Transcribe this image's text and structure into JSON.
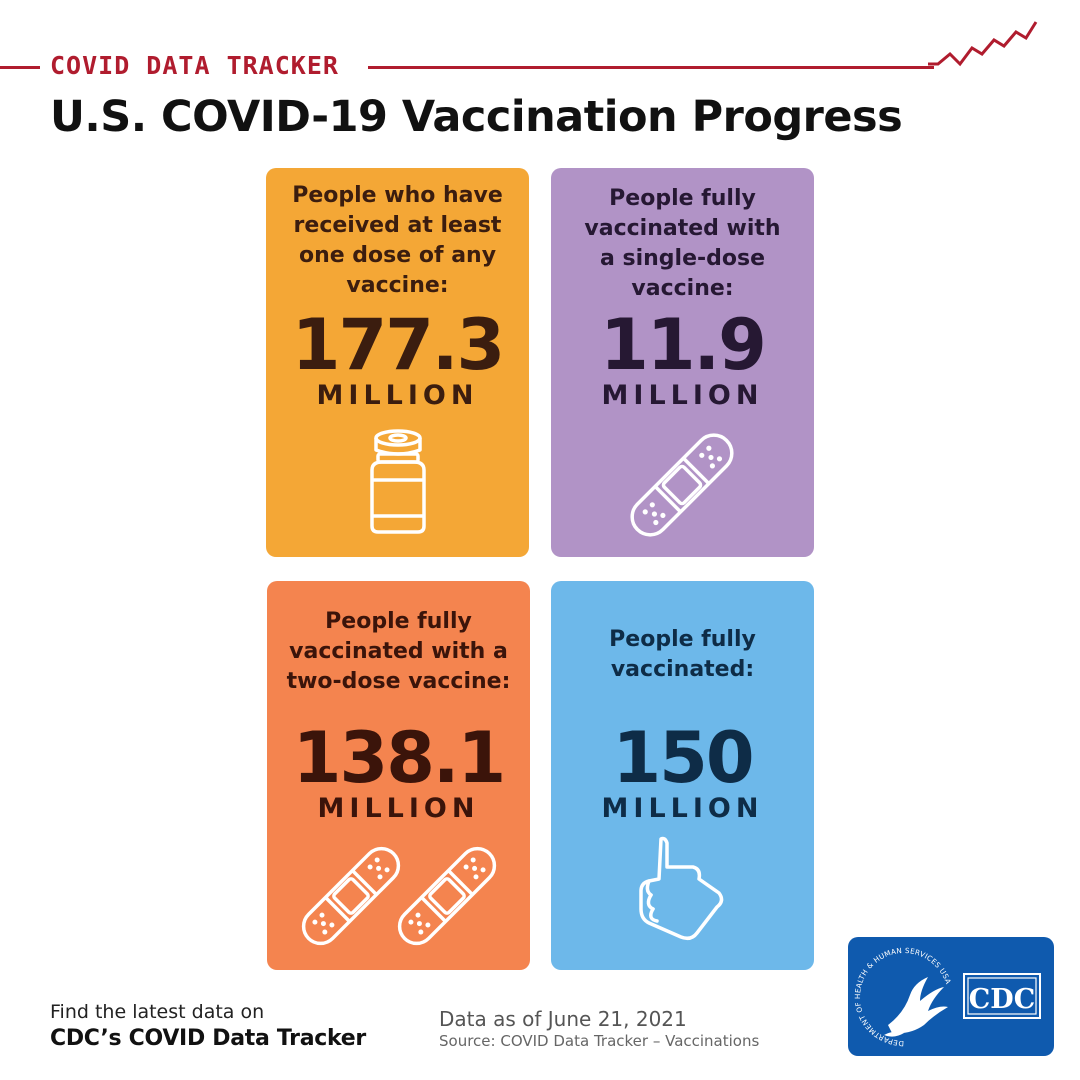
{
  "header": {
    "tracker_label": "COVID DATA TRACKER",
    "title": "U.S. COVID-19 Vaccination Progress",
    "accent_color": "#b01c2e"
  },
  "cards": [
    {
      "label_lines": [
        "People who have",
        "received at least",
        "one dose of any",
        "vaccine:"
      ],
      "value": "177.3",
      "unit": "MILLION",
      "icon": "vaccine-vial-icon",
      "color": "#f4a736"
    },
    {
      "label_lines": [
        "People fully",
        "vaccinated with",
        "a single-dose",
        "vaccine:"
      ],
      "value": "11.9",
      "unit": "MILLION",
      "icon": "bandage-icon",
      "color": "#b193c6"
    },
    {
      "label_lines": [
        "People fully",
        "vaccinated with a",
        "two-dose vaccine:"
      ],
      "value": "138.1",
      "unit": "MILLION",
      "icon": "two-bandages-icon",
      "color": "#f4844f"
    },
    {
      "label_lines": [
        "People fully",
        "vaccinated:"
      ],
      "value": "150",
      "unit": "MILLION",
      "icon": "thumbs-up-icon",
      "color": "#6db8ea"
    }
  ],
  "footer": {
    "line1": "Find the latest data on",
    "line2": "CDC’s COVID Data Tracker",
    "as_of": "Data as of June 21, 2021",
    "source": "Source: COVID Data Tracker – Vaccinations"
  },
  "logo": {
    "hhs_ring_text": "DEPARTMENT OF HEALTH & HUMAN SERVICES USA",
    "cdc_text": "CDC",
    "color": "#0f5aae"
  }
}
